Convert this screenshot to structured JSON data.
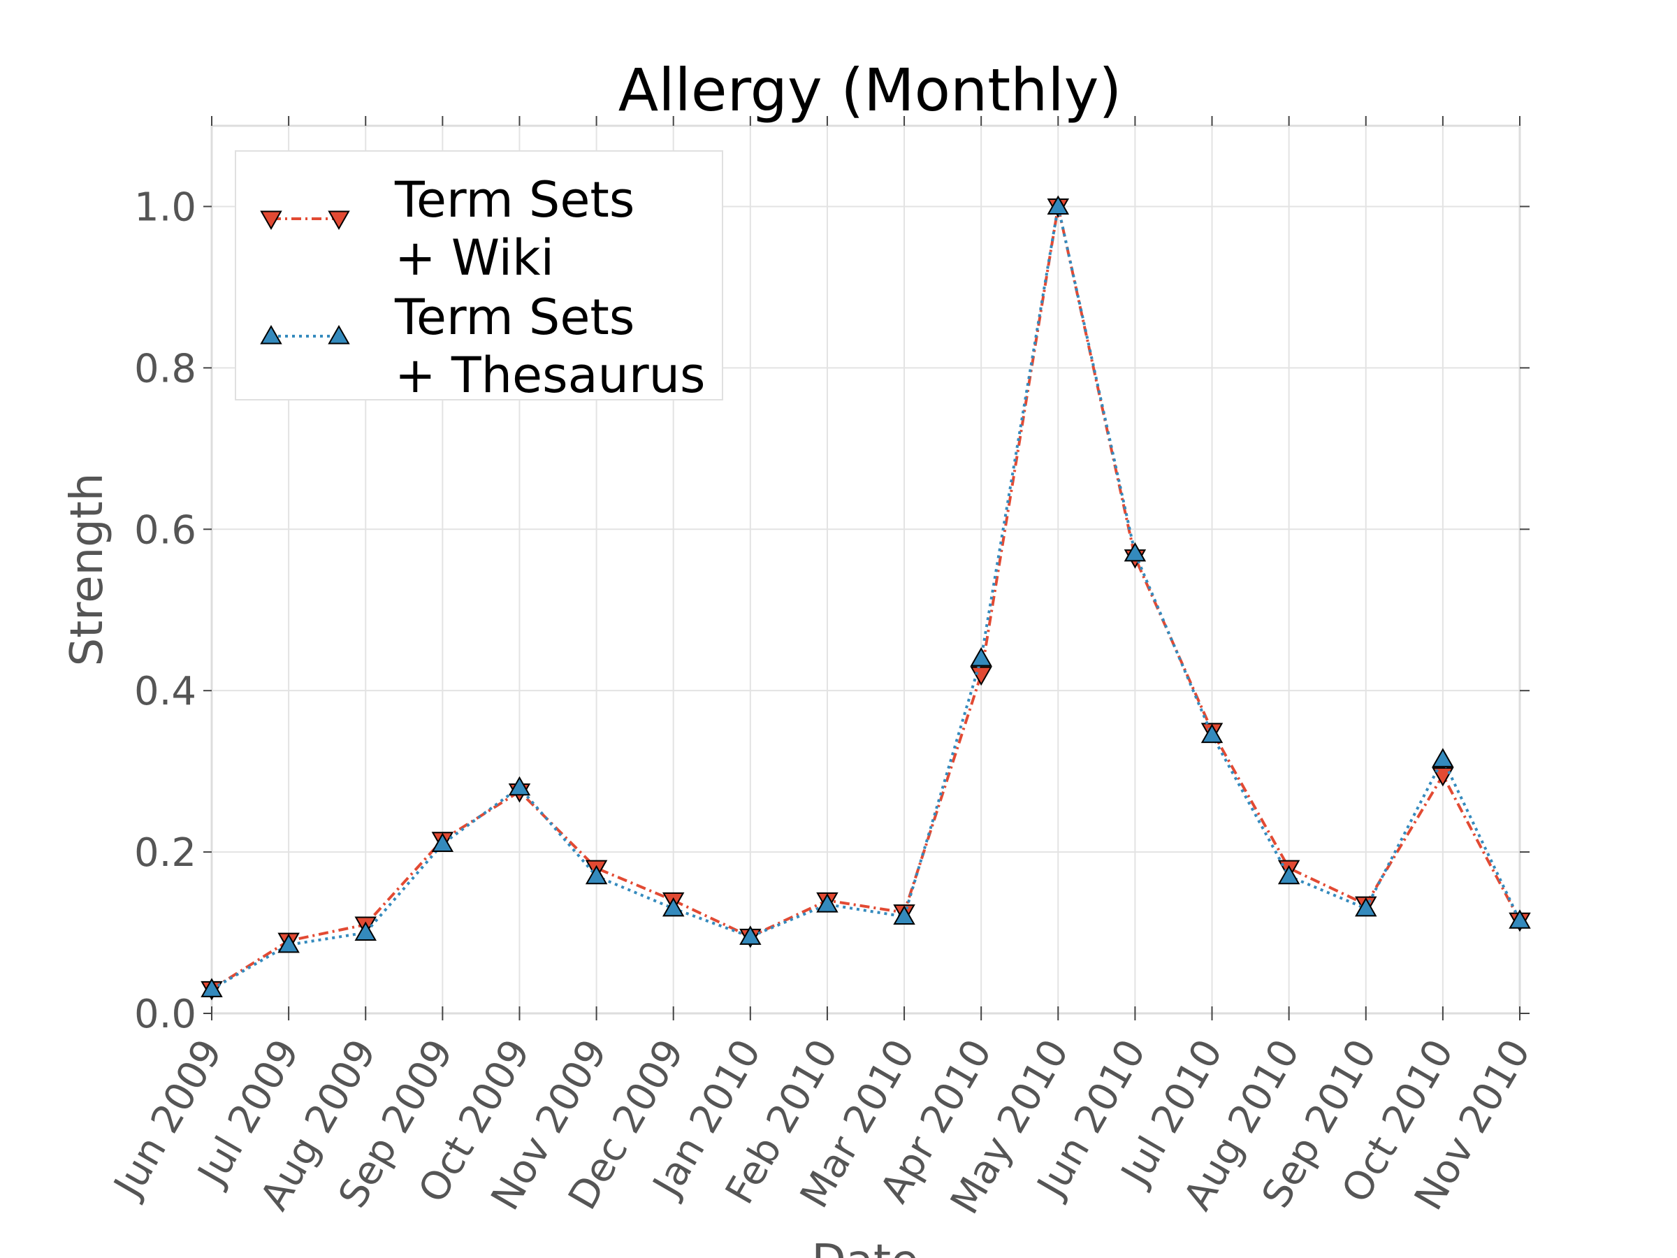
{
  "chart_data": {
    "type": "line",
    "title": "Allergy (Monthly)",
    "xlabel": "Date",
    "ylabel": "Strength",
    "ylim": [
      0.0,
      1.1
    ],
    "grid": true,
    "legend_position": "top-left",
    "x": [
      "Jun 2009",
      "Jul 2009",
      "Aug 2009",
      "Sep 2009",
      "Oct 2009",
      "Nov 2009",
      "Dec 2009",
      "Jan 2010",
      "Feb 2010",
      "Mar 2010",
      "Apr 2010",
      "May 2010",
      "Jun 2010",
      "Jul 2010",
      "Aug 2010",
      "Sep 2010",
      "Oct 2010",
      "Nov 2010"
    ],
    "y_ticks": [
      "0.0",
      "0.2",
      "0.4",
      "0.6",
      "0.8",
      "1.0"
    ],
    "series": [
      {
        "name": "Term Sets\n+ Wiki",
        "name_lines": [
          "Term Sets",
          "+ Wiki"
        ],
        "color": "#e24a33",
        "marker": "triangle-down",
        "line_style": "dashdot",
        "values": [
          0.03,
          0.09,
          0.11,
          0.215,
          0.275,
          0.18,
          0.14,
          0.095,
          0.14,
          0.125,
          0.42,
          1.0,
          0.565,
          0.35,
          0.18,
          0.135,
          0.295,
          0.115
        ]
      },
      {
        "name": "Term Sets\n+ Thesaurus",
        "name_lines": [
          "Term Sets",
          "+ Thesaurus"
        ],
        "color": "#348abd",
        "marker": "triangle-up",
        "line_style": "dotted",
        "values": [
          0.03,
          0.085,
          0.1,
          0.21,
          0.28,
          0.17,
          0.13,
          0.095,
          0.135,
          0.12,
          0.44,
          1.0,
          0.57,
          0.345,
          0.17,
          0.13,
          0.315,
          0.115
        ]
      }
    ]
  }
}
